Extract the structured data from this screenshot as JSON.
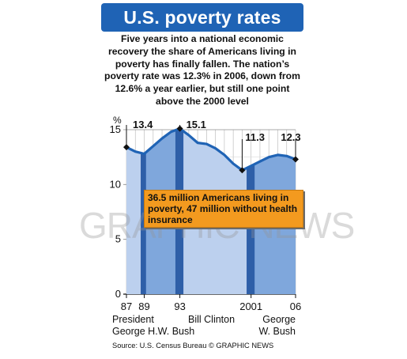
{
  "title": "U.S. poverty rates",
  "intro": "Five years into a national economic recovery the share of Americans living in poverty has finally fallen. The nation’s poverty rate was 12.3% in 2006, down from 12.6% a year earlier, but still one point above the 2000 level",
  "callout": "36.5 million Americans living in poverty, 47 million without health insurance",
  "presidents": {
    "label": "President",
    "bush_sr": "George H.W. Bush",
    "clinton": "Bill Clinton",
    "bush_jr_1": "George",
    "bush_jr_2": "W. Bush"
  },
  "source": "Source: U.S. Census Bureau  © GRAPHIC NEWS",
  "watermark": "GRAPHIC NEWS",
  "colors": {
    "title_bg": "#1f63b5",
    "line": "#1f63b5",
    "area_light": "#bcd0ee",
    "area_mid": "#7fa7dc",
    "area_dark": "#2e5fa8",
    "callout_bg": "#f39a1f"
  },
  "chart_data": {
    "type": "area",
    "ylabel": "%",
    "ylim": [
      0,
      15
    ],
    "yticks": [
      0,
      5,
      10,
      15
    ],
    "x": [
      1987,
      1988,
      1989,
      1990,
      1991,
      1992,
      1993,
      1994,
      1995,
      1996,
      1997,
      1998,
      1999,
      2000,
      2001,
      2002,
      2003,
      2004,
      2005,
      2006
    ],
    "values": [
      13.4,
      13.0,
      12.8,
      13.5,
      14.2,
      14.8,
      15.1,
      14.5,
      13.8,
      13.7,
      13.3,
      12.7,
      11.9,
      11.3,
      11.7,
      12.1,
      12.5,
      12.7,
      12.6,
      12.3
    ],
    "xtick_labels": [
      {
        "x": 1987,
        "label": "87"
      },
      {
        "x": 1989,
        "label": "89"
      },
      {
        "x": 1993,
        "label": "93"
      },
      {
        "x": 2001,
        "label": "2001"
      },
      {
        "x": 2006,
        "label": "06"
      }
    ],
    "annotations": [
      {
        "x": 1987,
        "label": "13.4"
      },
      {
        "x": 1993,
        "label": "15.1"
      },
      {
        "x": 2000,
        "label": "11.3"
      },
      {
        "x": 2006,
        "label": "12.3"
      }
    ],
    "periods": [
      {
        "from": 1987,
        "to": 1989,
        "shade": "light"
      },
      {
        "from": 1989,
        "to": 1993,
        "shade": "mid"
      },
      {
        "from": 1993,
        "to": 2001,
        "shade": "light"
      },
      {
        "from": 2001,
        "to": 2006,
        "shade": "mid"
      }
    ],
    "grid": true
  }
}
